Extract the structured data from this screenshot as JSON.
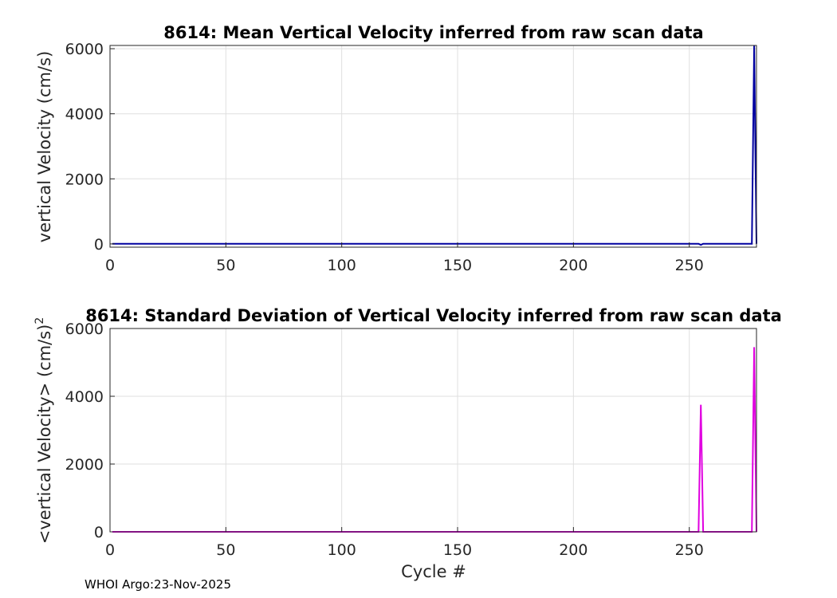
{
  "footer": "WHOI Argo:23-Nov-2025",
  "chart_data": [
    {
      "type": "line",
      "title": "8614: Mean Vertical Velocity inferred from raw scan data",
      "xlabel": "",
      "ylabel": "vertical Velocity (cm/s)",
      "ylabel_superscript": "",
      "xlim": [
        0,
        279
      ],
      "ylim": [
        -100,
        6100
      ],
      "xticks": [
        0,
        50,
        100,
        150,
        200,
        250
      ],
      "yticks": [
        0,
        2000,
        4000,
        6000
      ],
      "grid": true,
      "series": [
        {
          "name": "mean vertical velocity",
          "color": "#0000a0",
          "x": [
            1,
            2,
            3,
            4,
            5,
            6,
            7,
            8,
            9,
            10,
            15,
            20,
            25,
            30,
            35,
            40,
            45,
            50,
            55,
            60,
            65,
            70,
            75,
            80,
            85,
            90,
            95,
            100,
            105,
            110,
            115,
            120,
            125,
            130,
            135,
            140,
            145,
            150,
            155,
            160,
            165,
            170,
            175,
            180,
            185,
            190,
            195,
            200,
            205,
            210,
            215,
            220,
            225,
            230,
            235,
            240,
            245,
            250,
            254,
            255,
            256,
            260,
            265,
            270,
            275,
            277,
            278,
            279
          ],
          "values": [
            5,
            5,
            5,
            5,
            5,
            5,
            5,
            5,
            5,
            5,
            5,
            5,
            5,
            5,
            5,
            5,
            5,
            5,
            5,
            5,
            5,
            5,
            5,
            5,
            5,
            5,
            5,
            5,
            5,
            5,
            5,
            5,
            5,
            5,
            5,
            5,
            5,
            5,
            5,
            5,
            5,
            5,
            5,
            5,
            5,
            5,
            5,
            5,
            5,
            5,
            5,
            5,
            5,
            5,
            5,
            5,
            5,
            5,
            5,
            -30,
            5,
            5,
            5,
            5,
            5,
            5,
            6100,
            5
          ]
        }
      ]
    },
    {
      "type": "line",
      "title": "8614: Standard Deviation of Vertical Velocity inferred from raw scan data",
      "xlabel": "Cycle #",
      "ylabel": "<vertical Velocity> (cm/s)",
      "ylabel_superscript": "2",
      "xlim": [
        0,
        279
      ],
      "ylim": [
        0,
        6000
      ],
      "xticks": [
        0,
        50,
        100,
        150,
        200,
        250
      ],
      "yticks": [
        0,
        2000,
        4000,
        6000
      ],
      "grid": true,
      "series": [
        {
          "name": "std vertical velocity",
          "color": "#e000e0",
          "x": [
            1,
            2,
            3,
            4,
            5,
            10,
            20,
            30,
            40,
            50,
            60,
            70,
            80,
            90,
            100,
            110,
            120,
            130,
            140,
            150,
            160,
            170,
            180,
            190,
            200,
            210,
            220,
            230,
            240,
            250,
            254,
            255,
            256,
            260,
            270,
            277,
            278,
            279
          ],
          "values": [
            0,
            0,
            0,
            0,
            0,
            0,
            0,
            0,
            0,
            0,
            0,
            0,
            0,
            0,
            0,
            0,
            0,
            0,
            0,
            0,
            0,
            0,
            0,
            0,
            0,
            0,
            0,
            0,
            0,
            0,
            0,
            3750,
            0,
            0,
            0,
            0,
            5450,
            0
          ]
        }
      ]
    }
  ]
}
